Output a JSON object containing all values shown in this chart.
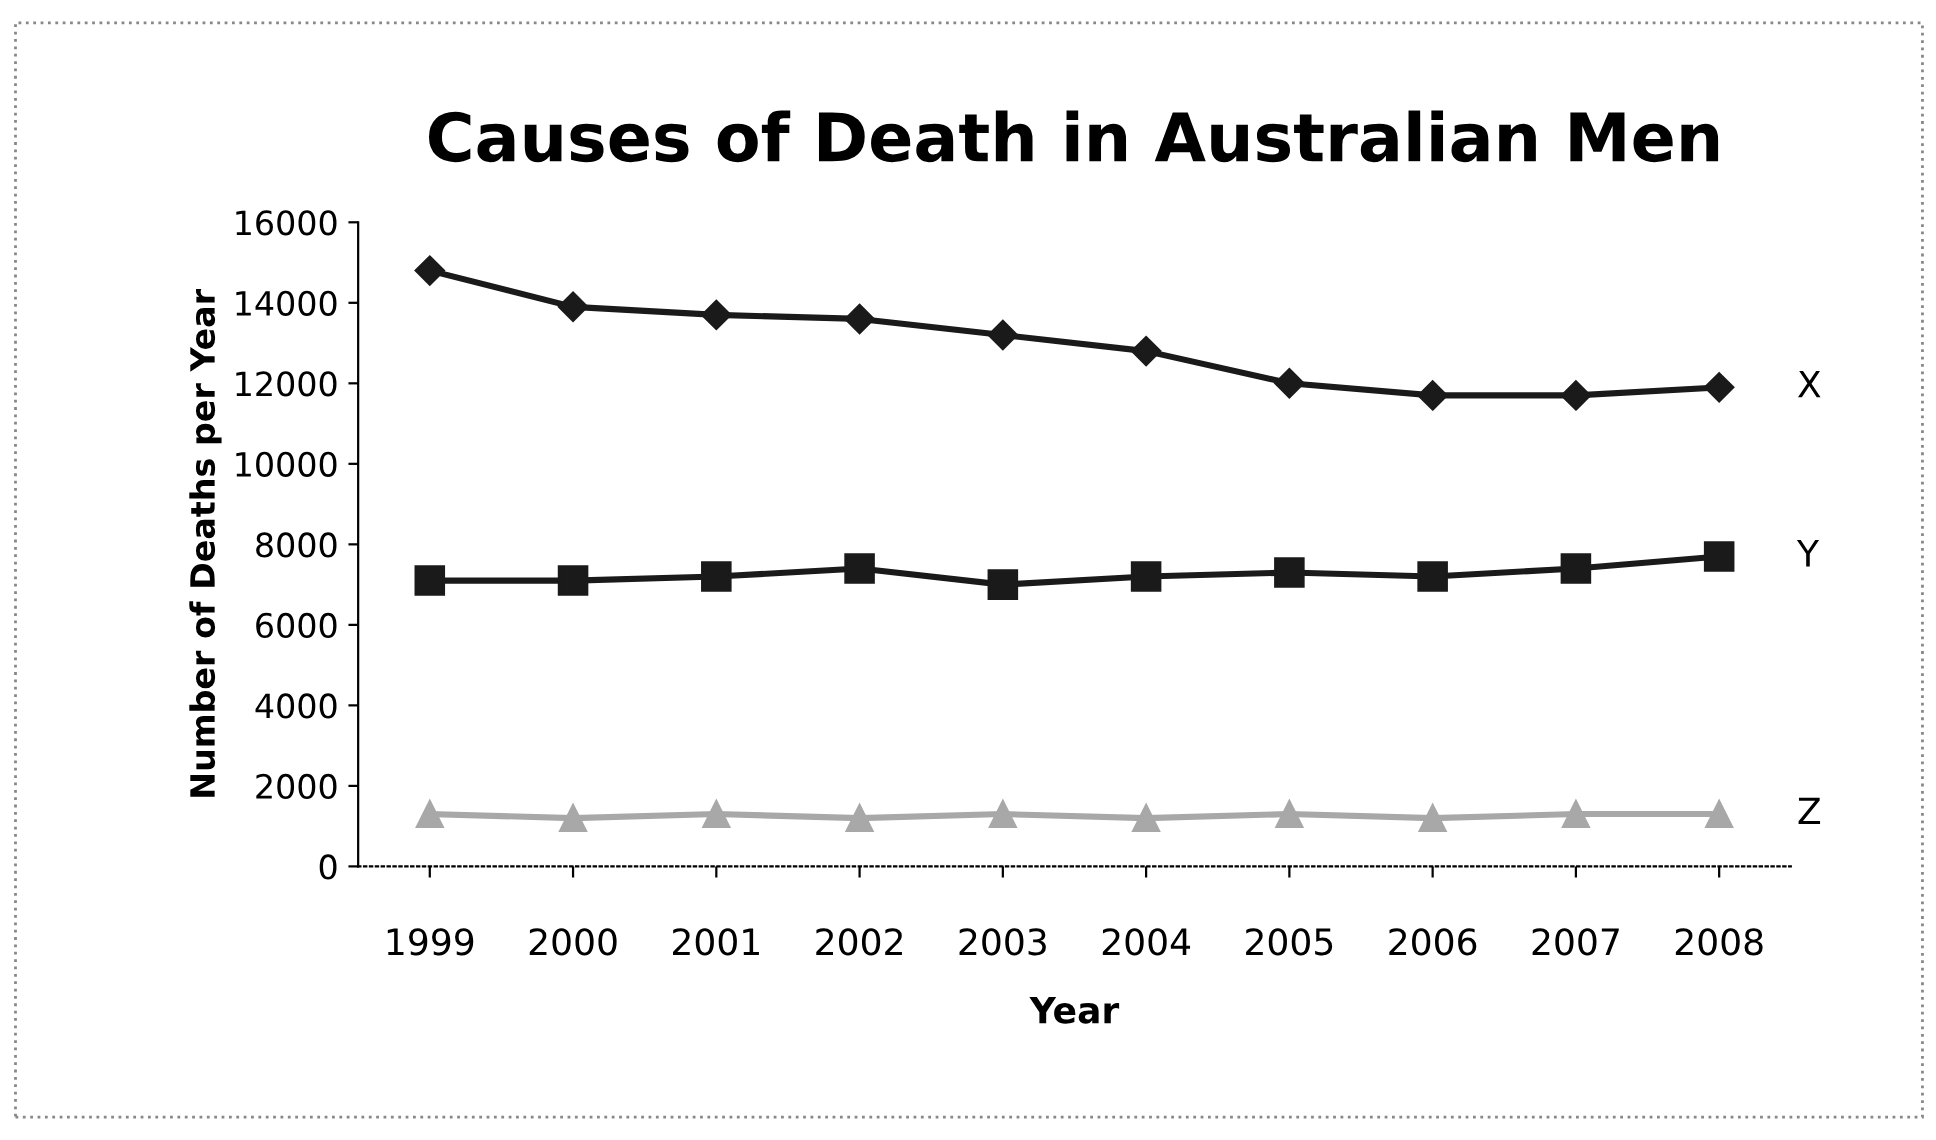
{
  "chart_data": {
    "type": "line",
    "title": "Causes of Death in Australian Men",
    "xlabel": "Year",
    "ylabel": "Number of Deaths per Year",
    "categories": [
      "1999",
      "2000",
      "2001",
      "2002",
      "2003",
      "2004",
      "2005",
      "2006",
      "2007",
      "2008"
    ],
    "series": [
      {
        "name": "X",
        "color": "#1a1a1a",
        "marker": "diamond",
        "values": [
          14800,
          13900,
          13700,
          13600,
          13200,
          12800,
          12000,
          11700,
          11700,
          11900
        ]
      },
      {
        "name": "Y",
        "color": "#1a1a1a",
        "marker": "square",
        "values": [
          7100,
          7100,
          7200,
          7400,
          7000,
          7200,
          7300,
          7200,
          7400,
          7700
        ]
      },
      {
        "name": "Z",
        "color": "#a8a8a8",
        "marker": "triangle",
        "values": [
          1300,
          1200,
          1300,
          1200,
          1300,
          1200,
          1300,
          1200,
          1300,
          1300
        ]
      }
    ],
    "ylim": [
      0,
      16000
    ],
    "yticks": [
      0,
      2000,
      4000,
      6000,
      8000,
      10000,
      12000,
      14000,
      16000
    ],
    "grid": false,
    "legend": false
  }
}
